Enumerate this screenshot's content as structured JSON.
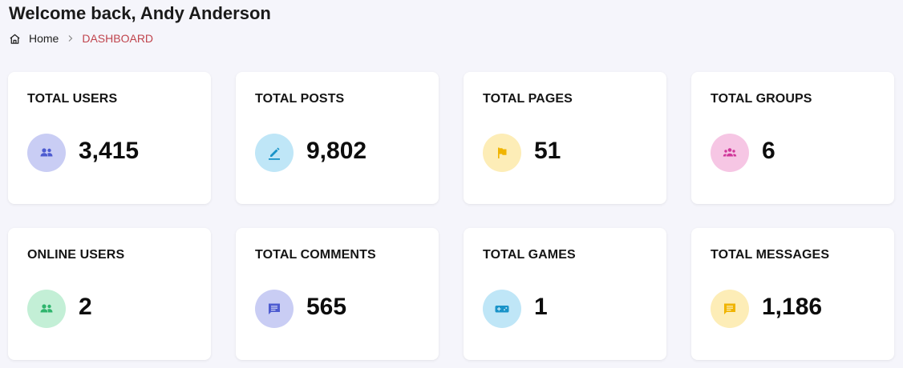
{
  "header": {
    "title": "Welcome back, Andy Anderson"
  },
  "breadcrumb": {
    "home": "Home",
    "current": "DASHBOARD"
  },
  "colors": {
    "accent": "#c0444d",
    "users_bg": "#c9cdf4",
    "users_fg": "#4d5bd0",
    "posts_bg": "#bfe6f7",
    "posts_fg": "#1993c8",
    "pages_bg": "#fdedb7",
    "pages_fg": "#f0b400",
    "groups_bg": "#f6c6e4",
    "groups_fg": "#d0379a",
    "online_bg": "#c3efd6",
    "online_fg": "#2fb56d",
    "comments_bg": "#c9cdf4",
    "comments_fg": "#4d5bd0",
    "games_bg": "#bfe6f7",
    "games_fg": "#1993c8",
    "messages_bg": "#fdedb7",
    "messages_fg": "#f0b400"
  },
  "stats": [
    {
      "title": "TOTAL USERS",
      "value": "3,415",
      "icon": "users-icon"
    },
    {
      "title": "TOTAL POSTS",
      "value": "9,802",
      "icon": "edit-icon"
    },
    {
      "title": "TOTAL PAGES",
      "value": "51",
      "icon": "flag-icon"
    },
    {
      "title": "TOTAL GROUPS",
      "value": "6",
      "icon": "group-icon"
    },
    {
      "title": "ONLINE USERS",
      "value": "2",
      "icon": "online-users-icon"
    },
    {
      "title": "TOTAL COMMENTS",
      "value": "565",
      "icon": "comment-icon"
    },
    {
      "title": "TOTAL GAMES",
      "value": "1",
      "icon": "gamepad-icon"
    },
    {
      "title": "TOTAL MESSAGES",
      "value": "1,186",
      "icon": "message-icon"
    }
  ]
}
